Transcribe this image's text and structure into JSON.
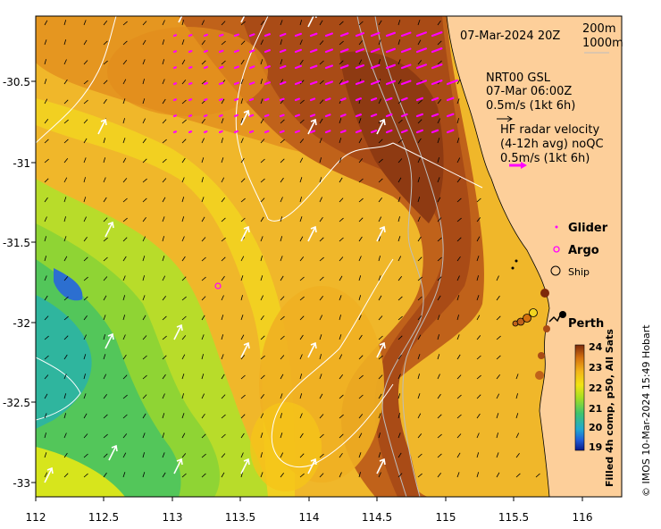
{
  "map": {
    "date_label": "07-Mar-2024 20Z",
    "isobath_labels": [
      "200m",
      "1000m"
    ],
    "lon_ticks": [
      "112",
      "112.5",
      "113",
      "113.5",
      "114",
      "114.5",
      "115",
      "115.5",
      "116"
    ],
    "lat_ticks": [
      "-30.5",
      "-31",
      "-31.5",
      "-32",
      "-32.5",
      "-33"
    ],
    "gsl": {
      "title": "NRT00 GSL",
      "time": "07-Mar 06:00Z",
      "scale": "0.5m/s (1kt 6h)"
    },
    "hf": {
      "title": "HF radar velocity",
      "avg": "(4-12h avg) noQC",
      "scale": "0.5m/s (1kt 6h)"
    },
    "legend": {
      "glider": "Glider",
      "argo": "Argo",
      "ship": "Ship"
    },
    "city": "Perth",
    "colorbar": {
      "title": "Filled 4h comp, p50, All Sats",
      "ticks": [
        "24",
        "23",
        "22",
        "21",
        "20",
        "19"
      ],
      "min": 19,
      "max": 24
    },
    "credit": "© IMOS 10-Mar-2024 15:49 Hobart",
    "colors": {
      "land": "#fdcf9a",
      "hf_vector": "#ff00ff",
      "current_vector": "#ffffff",
      "gsl_vector": "#000000"
    }
  }
}
